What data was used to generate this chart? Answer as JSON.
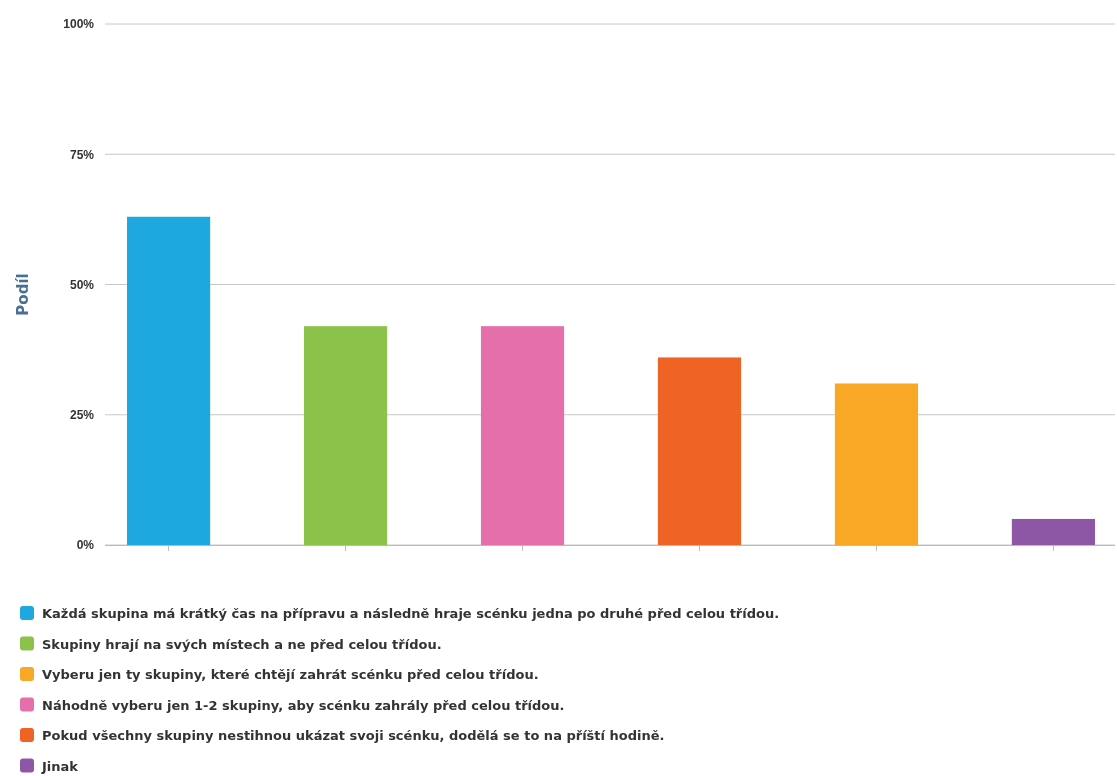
{
  "chart_data": {
    "type": "bar",
    "ylabel": "Podíl",
    "categories": [
      null,
      null,
      null,
      null,
      null,
      null
    ],
    "series": [
      {
        "name": "Každá skupina má krátký čas na přípravu a následně hraje scénku jedna po druhé před celou třídou.",
        "color": "#1ea8e0",
        "values": [
          63,
          null,
          null,
          null,
          null,
          null
        ]
      },
      {
        "name": "Skupiny hrají na svých místech a ne před celou třídou.",
        "color": "#8bc34a",
        "values": [
          null,
          42,
          null,
          null,
          null,
          null
        ]
      },
      {
        "name": "Vyberu jen ty skupiny, které chtějí zahrát scénku před celou třídou.",
        "color": "#f9a825",
        "values": [
          null,
          null,
          null,
          null,
          31,
          null
        ]
      },
      {
        "name": "Náhodně vyberu jen 1-2 skupiny, aby scénku zahrály před celou třídou.",
        "color": "#e56fab",
        "values": [
          null,
          null,
          42,
          null,
          null,
          null
        ]
      },
      {
        "name": "Pokud všechny skupiny nestihnou ukázat svoji scénku, dodělá se to na příští hodině.",
        "color": "#ef6424",
        "values": [
          null,
          null,
          null,
          36,
          null,
          null
        ]
      },
      {
        "name": "Jinak",
        "color": "#8e57a5",
        "values": [
          null,
          null,
          null,
          null,
          null,
          5
        ]
      }
    ],
    "ylim": [
      0,
      100
    ],
    "yticks": [
      {
        "value": 0,
        "label": "0%"
      },
      {
        "value": 25,
        "label": "25%"
      },
      {
        "value": 50,
        "label": "50%"
      },
      {
        "value": 75,
        "label": "75%"
      },
      {
        "value": 100,
        "label": "100%"
      }
    ],
    "grid": "y",
    "legend": "bottom"
  }
}
